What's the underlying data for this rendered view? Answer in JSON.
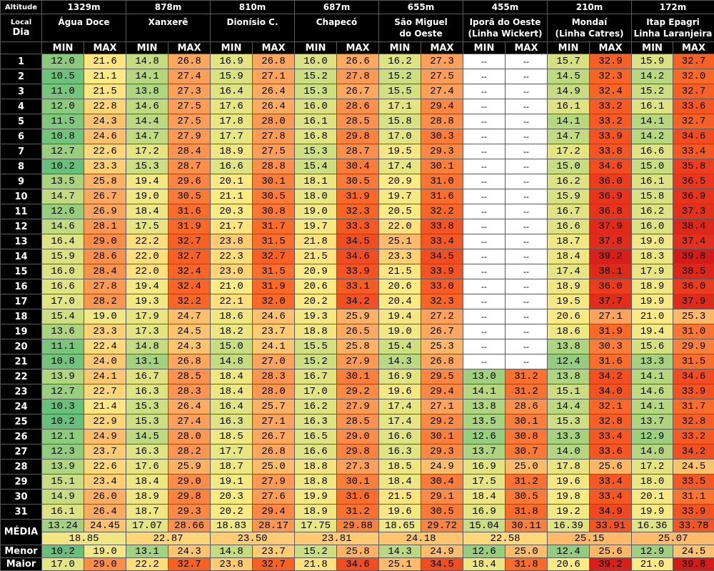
{
  "header": {
    "altitude_label": "Altitude",
    "local_label": "Local",
    "dia_label": "Dia",
    "min_label": "MIN",
    "max_label": "MAX"
  },
  "stations": [
    {
      "altitude": "1329m",
      "name_line1": "Água Doce",
      "name_line2": ""
    },
    {
      "altitude": "878m",
      "name_line1": "Xanxerê",
      "name_line2": ""
    },
    {
      "altitude": "810m",
      "name_line1": "Dionísio C.",
      "name_line2": ""
    },
    {
      "altitude": "687m",
      "name_line1": "Chapecó",
      "name_line2": ""
    },
    {
      "altitude": "655m",
      "name_line1": "São Miguel",
      "name_line2": "do Oeste"
    },
    {
      "altitude": "455m",
      "name_line1": "Iporã do Oeste",
      "name_line2": "(Linha Wickert)"
    },
    {
      "altitude": "210m",
      "name_line1": "Mondaí",
      "name_line2": "(Linha Catres)"
    },
    {
      "altitude": "172m",
      "name_line1": "Itap Epagri",
      "name_line2": "Linha Laranjeira"
    }
  ],
  "no_data": "--",
  "rows": [
    {
      "day": "1",
      "values": [
        "12.0",
        "21.6",
        "14.8",
        "26.8",
        "16.9",
        "26.8",
        "16.0",
        "26.6",
        "16.2",
        "27.3",
        "--",
        "--",
        "15.7",
        "32.9",
        "15.9",
        "32.7"
      ]
    },
    {
      "day": "2",
      "values": [
        "10.5",
        "21.1",
        "14.1",
        "27.4",
        "15.9",
        "27.1",
        "15.2",
        "27.8",
        "15.2",
        "27.5",
        "--",
        "--",
        "14.5",
        "32.3",
        "14.2",
        "32.0"
      ]
    },
    {
      "day": "3",
      "values": [
        "11.0",
        "21.5",
        "13.8",
        "27.3",
        "16.4",
        "26.4",
        "15.3",
        "26.7",
        "15.5",
        "27.4",
        "--",
        "--",
        "14.9",
        "32.4",
        "15.2",
        "32.7"
      ]
    },
    {
      "day": "4",
      "values": [
        "12.0",
        "22.8",
        "14.6",
        "27.5",
        "17.6",
        "26.4",
        "16.0",
        "28.6",
        "17.1",
        "29.4",
        "--",
        "--",
        "16.1",
        "33.2",
        "16.1",
        "33.6"
      ]
    },
    {
      "day": "5",
      "values": [
        "11.5",
        "24.3",
        "14.4",
        "27.5",
        "17.8",
        "28.0",
        "16.1",
        "28.5",
        "15.8",
        "28.8",
        "--",
        "--",
        "14.1",
        "33.2",
        "14.1",
        "32.7"
      ]
    },
    {
      "day": "6",
      "values": [
        "10.8",
        "24.6",
        "14.7",
        "27.9",
        "17.7",
        "27.8",
        "16.8",
        "29.8",
        "17.0",
        "30.3",
        "--",
        "--",
        "14.7",
        "33.9",
        "14.2",
        "34.6"
      ]
    },
    {
      "day": "7",
      "values": [
        "12.7",
        "22.6",
        "17.2",
        "28.4",
        "18.9",
        "27.5",
        "15.3",
        "28.7",
        "19.5",
        "29.3",
        "--",
        "--",
        "17.2",
        "33.8",
        "16.6",
        "33.4"
      ]
    },
    {
      "day": "8",
      "values": [
        "10.2",
        "23.3",
        "15.3",
        "28.7",
        "16.6",
        "28.8",
        "15.4",
        "30.4",
        "17.4",
        "30.1",
        "--",
        "--",
        "15.0",
        "34.6",
        "15.0",
        "35.8"
      ]
    },
    {
      "day": "9",
      "values": [
        "13.5",
        "25.8",
        "19.4",
        "29.6",
        "20.1",
        "30.1",
        "18.1",
        "30.5",
        "20.9",
        "31.0",
        "--",
        "--",
        "16.2",
        "36.0",
        "16.1",
        "36.5"
      ]
    },
    {
      "day": "10",
      "values": [
        "14.7",
        "26.7",
        "19.0",
        "30.5",
        "21.1",
        "30.5",
        "18.0",
        "31.9",
        "19.7",
        "31.6",
        "--",
        "--",
        "15.9",
        "36.9",
        "15.8",
        "36.9"
      ]
    },
    {
      "day": "11",
      "values": [
        "12.6",
        "26.9",
        "18.4",
        "31.6",
        "20.3",
        "30.8",
        "19.0",
        "32.3",
        "20.5",
        "32.2",
        "--",
        "--",
        "16.7",
        "36.8",
        "16.2",
        "37.3"
      ]
    },
    {
      "day": "12",
      "values": [
        "14.6",
        "28.1",
        "17.5",
        "31.9",
        "21.7",
        "31.7",
        "19.7",
        "33.3",
        "22.0",
        "33.8",
        "--",
        "--",
        "16.6",
        "37.9",
        "16.0",
        "38.4"
      ]
    },
    {
      "day": "13",
      "values": [
        "16.4",
        "29.0",
        "22.2",
        "32.7",
        "23.8",
        "31.5",
        "21.8",
        "34.5",
        "25.1",
        "33.4",
        "--",
        "--",
        "18.7",
        "37.8",
        "19.0",
        "37.4"
      ]
    },
    {
      "day": "14",
      "values": [
        "15.9",
        "28.6",
        "22.0",
        "32.7",
        "22.3",
        "32.7",
        "21.5",
        "34.6",
        "23.3",
        "34.5",
        "--",
        "--",
        "18.4",
        "39.2",
        "18.3",
        "39.8"
      ]
    },
    {
      "day": "15",
      "values": [
        "16.0",
        "28.4",
        "22.0",
        "32.4",
        "23.0",
        "31.5",
        "20.9",
        "33.9",
        "21.5",
        "33.9",
        "--",
        "--",
        "17.4",
        "38.1",
        "17.9",
        "38.5"
      ]
    },
    {
      "day": "16",
      "values": [
        "16.6",
        "27.8",
        "19.4",
        "32.4",
        "21.0",
        "31.9",
        "20.6",
        "33.1",
        "20.6",
        "33.0",
        "--",
        "--",
        "18.9",
        "36.0",
        "18.9",
        "36.0"
      ]
    },
    {
      "day": "17",
      "values": [
        "17.0",
        "28.2",
        "19.3",
        "32.2",
        "22.1",
        "32.0",
        "20.2",
        "34.2",
        "20.4",
        "32.3",
        "--",
        "--",
        "19.5",
        "37.7",
        "19.9",
        "37.9"
      ]
    },
    {
      "day": "18",
      "values": [
        "15.4",
        "19.0",
        "17.9",
        "24.7",
        "18.6",
        "24.6",
        "19.3",
        "25.9",
        "19.4",
        "27.2",
        "--",
        "--",
        "20.6",
        "27.1",
        "21.0",
        "25.3"
      ]
    },
    {
      "day": "19",
      "values": [
        "13.6",
        "23.3",
        "17.3",
        "24.5",
        "18.2",
        "23.7",
        "18.8",
        "26.5",
        "19.0",
        "26.7",
        "--",
        "--",
        "18.6",
        "31.9",
        "19.4",
        "31.0"
      ]
    },
    {
      "day": "20",
      "values": [
        "11.1",
        "22.4",
        "14.8",
        "24.3",
        "15.0",
        "24.1",
        "15.5",
        "25.8",
        "15.4",
        "25.3",
        "--",
        "--",
        "13.8",
        "30.3",
        "15.6",
        "29.9"
      ]
    },
    {
      "day": "21",
      "values": [
        "10.8",
        "24.0",
        "13.1",
        "26.8",
        "14.8",
        "27.0",
        "15.2",
        "27.9",
        "14.3",
        "26.8",
        "--",
        "--",
        "12.4",
        "31.6",
        "13.3",
        "31.5"
      ]
    },
    {
      "day": "22",
      "values": [
        "13.9",
        "24.1",
        "16.7",
        "28.5",
        "18.4",
        "28.3",
        "16.7",
        "30.1",
        "16.9",
        "29.5",
        "13.0",
        "31.2",
        "13.8",
        "34.2",
        "14.1",
        "34.6"
      ]
    },
    {
      "day": "23",
      "values": [
        "12.7",
        "22.7",
        "16.3",
        "28.3",
        "18.4",
        "28.0",
        "17.0",
        "29.2",
        "19.6",
        "29.4",
        "14.1",
        "31.2",
        "15.1",
        "34.0",
        "14.6",
        "33.9"
      ]
    },
    {
      "day": "24",
      "values": [
        "10.3",
        "21.4",
        "15.3",
        "26.4",
        "16.4",
        "25.7",
        "16.2",
        "27.9",
        "17.4",
        "27.1",
        "13.8",
        "28.6",
        "14.4",
        "32.1",
        "14.1",
        "31.7"
      ]
    },
    {
      "day": "25",
      "values": [
        "10.2",
        "22.9",
        "15.3",
        "27.4",
        "16.3",
        "27.1",
        "16.3",
        "28.5",
        "17.4",
        "29.2",
        "13.5",
        "30.1",
        "15.3",
        "32.8",
        "13.7",
        "32.8"
      ]
    },
    {
      "day": "26",
      "values": [
        "12.1",
        "24.9",
        "14.5",
        "28.0",
        "18.5",
        "26.7",
        "16.5",
        "29.0",
        "16.6",
        "30.1",
        "12.6",
        "30.8",
        "13.3",
        "33.4",
        "12.9",
        "33.2"
      ]
    },
    {
      "day": "27",
      "values": [
        "12.3",
        "23.7",
        "16.3",
        "28.2",
        "17.7",
        "26.8",
        "16.6",
        "29.8",
        "16.3",
        "29.3",
        "13.7",
        "30.7",
        "14.0",
        "33.6",
        "14.0",
        "34.2"
      ]
    },
    {
      "day": "28",
      "values": [
        "13.9",
        "22.6",
        "17.6",
        "25.9",
        "18.7",
        "25.0",
        "18.8",
        "27.3",
        "18.5",
        "24.9",
        "16.9",
        "25.0",
        "17.8",
        "25.6",
        "17.2",
        "24.5"
      ]
    },
    {
      "day": "29",
      "values": [
        "15.1",
        "23.4",
        "18.4",
        "29.0",
        "19.1",
        "27.9",
        "18.8",
        "30.1",
        "18.4",
        "30.4",
        "17.5",
        "31.2",
        "19.6",
        "33.4",
        "18.0",
        "33.5"
      ]
    },
    {
      "day": "30",
      "values": [
        "14.9",
        "26.0",
        "18.9",
        "29.8",
        "20.3",
        "27.6",
        "19.9",
        "31.6",
        "21.5",
        "29.1",
        "18.4",
        "30.5",
        "19.8",
        "33.4",
        "20.1",
        "31.1"
      ]
    },
    {
      "day": "31",
      "values": [
        "16.1",
        "26.4",
        "18.7",
        "29.3",
        "20.2",
        "29.4",
        "18.9",
        "31.2",
        "19.6",
        "30.5",
        "16.9",
        "31.8",
        "19.2",
        "34.9",
        "19.9",
        "33.9"
      ]
    }
  ],
  "summary": {
    "media_label": "MÉDIA",
    "media_values": [
      "13.24",
      "24.45",
      "17.07",
      "28.66",
      "18.83",
      "28.17",
      "17.75",
      "29.88",
      "18.65",
      "29.72",
      "15.04",
      "30.11",
      "16.39",
      "33.91",
      "16.36",
      "33.78"
    ],
    "media_overall": [
      "18.85",
      "22.87",
      "23.50",
      "23.81",
      "24.18",
      "22.58",
      "25.15",
      "25.07"
    ],
    "menor_label": "Menor",
    "menor_values": [
      "10.2",
      "19.0",
      "13.1",
      "24.3",
      "14.8",
      "23.7",
      "15.2",
      "25.8",
      "14.3",
      "24.9",
      "12.6",
      "25.0",
      "12.4",
      "25.6",
      "12.9",
      "24.5"
    ],
    "maior_label": "Maior",
    "maior_values": [
      "17.0",
      "29.0",
      "22.2",
      "32.7",
      "23.8",
      "32.7",
      "21.8",
      "34.6",
      "25.1",
      "34.5",
      "18.4",
      "31.8",
      "20.6",
      "39.2",
      "21.0",
      "39.8"
    ]
  }
}
